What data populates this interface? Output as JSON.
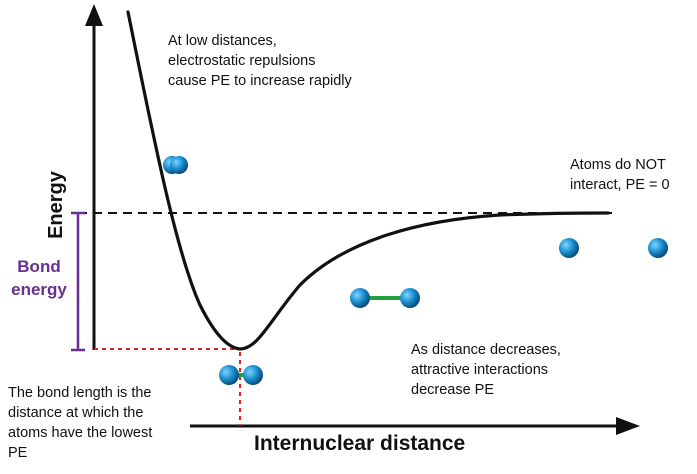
{
  "axes": {
    "y_label": "Energy",
    "x_label": "Internuclear distance"
  },
  "bond_energy_label": "Bond\nenergy",
  "annotations": {
    "low_distance": "At low distances,\nelectrostatic repulsions\ncause PE to increase rapidly",
    "no_interaction": "Atoms do NOT\ninteract, PE = 0",
    "decreasing": "As distance decreases,\nattractive interactions\ndecrease PE",
    "bond_length": "The bond length is the\ndistance at which the\natoms have the lowest\nPE"
  },
  "colors": {
    "atom": "#1a8fd0",
    "bond_line": "#1fa03c",
    "bond_energy": "#6a2d91",
    "guide_dashed": "#e02020",
    "curve": "#111111"
  }
}
